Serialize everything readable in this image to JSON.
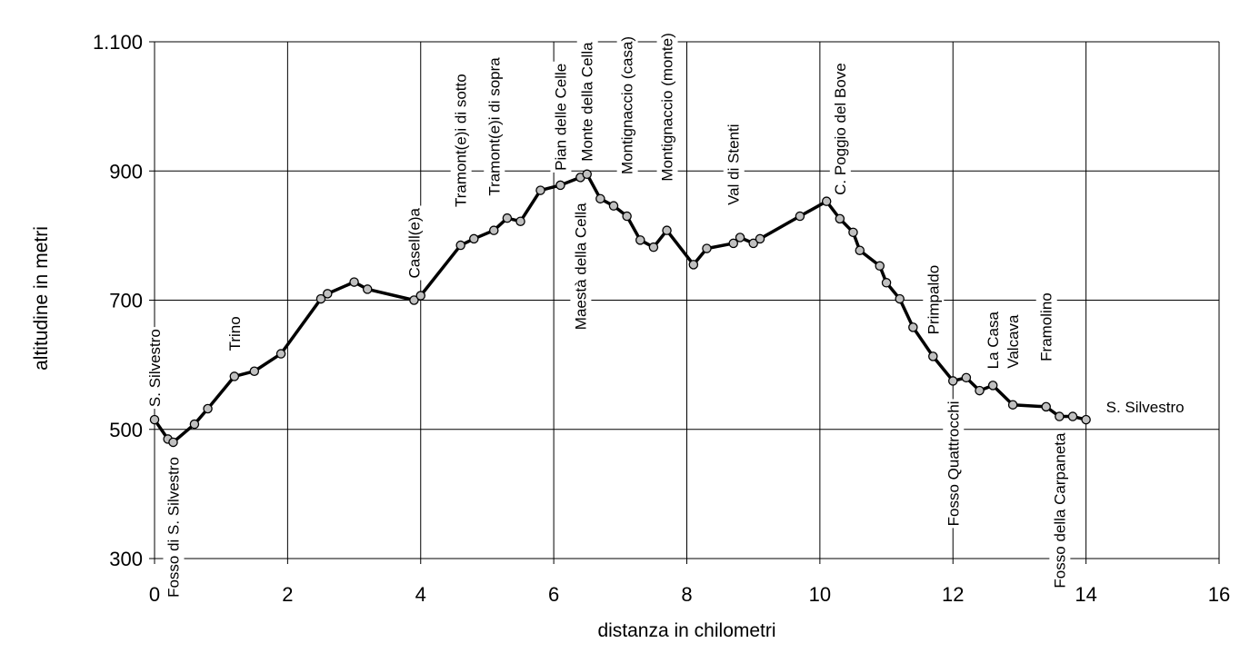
{
  "chart_data": {
    "type": "line",
    "xlabel": "distanza in chilometri",
    "ylabel": "altitudine  in metri",
    "xlim": [
      0,
      16
    ],
    "ylim": [
      300,
      1100
    ],
    "x_ticks": [
      0,
      2,
      4,
      6,
      8,
      10,
      12,
      14,
      16
    ],
    "y_ticks": [
      300,
      500,
      700,
      900,
      1100
    ],
    "x_tick_labels": [
      "0",
      "2",
      "4",
      "6",
      "8",
      "10",
      "12",
      "14",
      "16"
    ],
    "y_tick_labels": [
      "300",
      "500",
      "700",
      "900",
      "1.100"
    ],
    "grid": true,
    "line_color": "#000000",
    "marker_fill": "#c0c0c0",
    "series": [
      {
        "x": [
          0.0,
          0.2,
          0.28,
          0.6,
          0.8,
          1.2,
          1.5,
          1.9,
          2.5,
          2.6,
          3.0,
          3.2,
          3.9,
          4.0,
          4.6,
          4.8,
          5.1,
          5.3,
          5.5,
          5.8,
          6.1,
          6.4,
          6.5,
          6.7,
          6.9,
          7.1,
          7.3,
          7.5,
          7.7,
          8.1,
          8.3,
          8.7,
          8.8,
          9.0,
          9.1,
          9.7,
          10.1,
          10.3,
          10.5,
          10.6,
          10.9,
          11.0,
          11.2,
          11.4,
          11.7,
          12.0,
          12.2,
          12.4,
          12.6,
          12.9,
          13.4,
          13.6,
          13.8,
          14.0
        ],
        "values": [
          515,
          485,
          480,
          508,
          532,
          582,
          590,
          617,
          702,
          710,
          728,
          717,
          700,
          707,
          785,
          795,
          808,
          827,
          822,
          870,
          878,
          890,
          895,
          857,
          846,
          830,
          793,
          782,
          808,
          755,
          780,
          788,
          797,
          788,
          795,
          830,
          853,
          826,
          805,
          777,
          753,
          727,
          702,
          658,
          613,
          575,
          580,
          560,
          568,
          538,
          535,
          520,
          520,
          515
        ]
      }
    ],
    "annotations": [
      {
        "text": "S. Silvestro",
        "x": 0.0,
        "value": 515
      },
      {
        "text": "Fosso di S. Silvestro",
        "x": 0.28,
        "value": 480
      },
      {
        "text": "Trino",
        "x": 1.2,
        "value": 582
      },
      {
        "text": "Casell(e)a",
        "x": 3.9,
        "value": 700
      },
      {
        "text": "Tramont(e)i di sotto",
        "x": 4.6,
        "value": 785
      },
      {
        "text": "Tramont(e)i di sopra",
        "x": 5.1,
        "value": 808
      },
      {
        "text": "Pian delle Celle",
        "x": 6.1,
        "value": 878
      },
      {
        "text": "Monte della Cella",
        "x": 6.5,
        "value": 895
      },
      {
        "text": "Maestà della Cella",
        "x": 6.4,
        "value": 890
      },
      {
        "text": "Montignaccio (casa)",
        "x": 7.1,
        "value": 830
      },
      {
        "text": "Montignaccio (monte)",
        "x": 7.7,
        "value": 808
      },
      {
        "text": "Val di Stenti",
        "x": 8.7,
        "value": 788
      },
      {
        "text": "C. Poggio del Bove",
        "x": 10.3,
        "value": 826
      },
      {
        "text": "Primpaldo",
        "x": 11.7,
        "value": 613
      },
      {
        "text": "Fosso Quattrocchi",
        "x": 12.0,
        "value": 575
      },
      {
        "text": "La Casa",
        "x": 12.6,
        "value": 568
      },
      {
        "text": "Valcava",
        "x": 12.9,
        "value": 538
      },
      {
        "text": "Framolino",
        "x": 13.4,
        "value": 535
      },
      {
        "text": "Fosso della Carpaneta",
        "x": 13.6,
        "value": 520
      },
      {
        "text": "S. Silvestro",
        "x": 14.0,
        "value": 515
      }
    ]
  }
}
